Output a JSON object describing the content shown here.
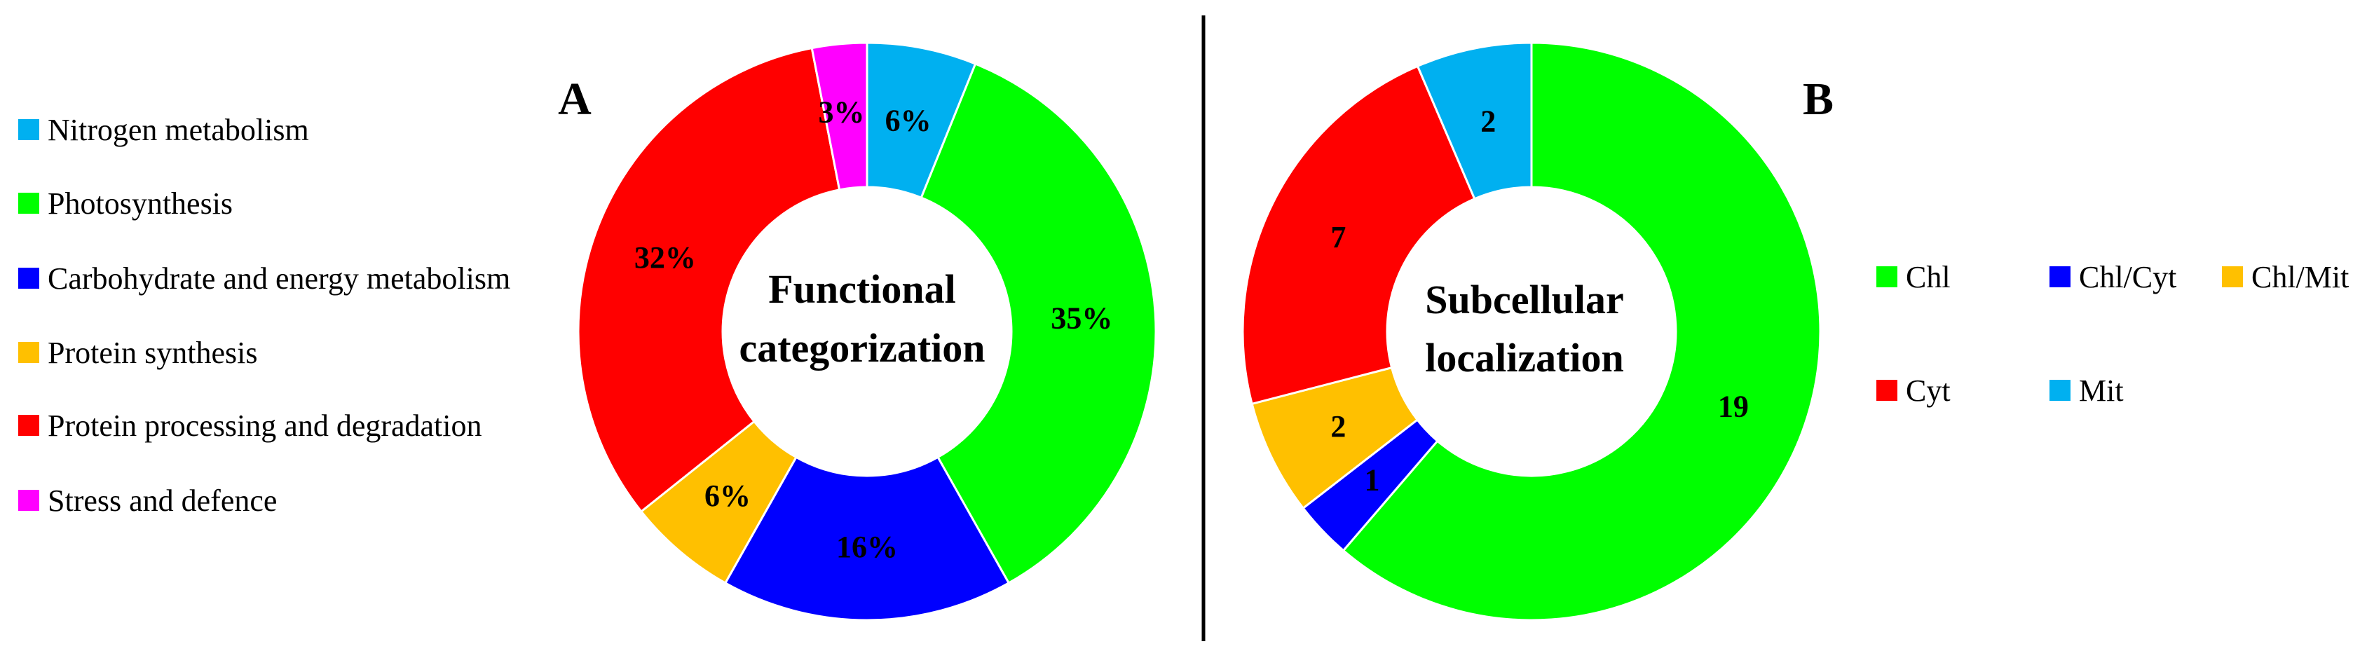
{
  "chart_data": [
    {
      "type": "pie",
      "panel": "A",
      "center_label": [
        "Functional",
        "categorization"
      ],
      "categories": [
        "Nitrogen metabolism",
        "Photosynthesis",
        "Carbohydrate and energy metabolism",
        "Protein synthesis",
        "Protein processing and degradation",
        "Stress and defence"
      ],
      "values": [
        6,
        35,
        16,
        6,
        32,
        3
      ],
      "data_labels": [
        "6%",
        "35%",
        "16%",
        "6%",
        "32%",
        "3%"
      ],
      "colors": [
        "#00B0F0",
        "#00FF00",
        "#0000FF",
        "#FFC000",
        "#FF0000",
        "#FF00FF"
      ],
      "legend_position": "left"
    },
    {
      "type": "pie",
      "panel": "B",
      "center_label": [
        "Subcellular",
        "localization"
      ],
      "categories": [
        "Chl",
        "Chl/Cyt",
        "Chl/Mit",
        "Cyt",
        "Mit"
      ],
      "values": [
        19,
        1,
        2,
        7,
        2
      ],
      "data_labels": [
        "19",
        "1",
        "2",
        "7",
        "2"
      ],
      "colors": [
        "#00FF00",
        "#0000FF",
        "#FFC000",
        "#FF0000",
        "#00B0F0"
      ],
      "legend_position": "right"
    }
  ]
}
